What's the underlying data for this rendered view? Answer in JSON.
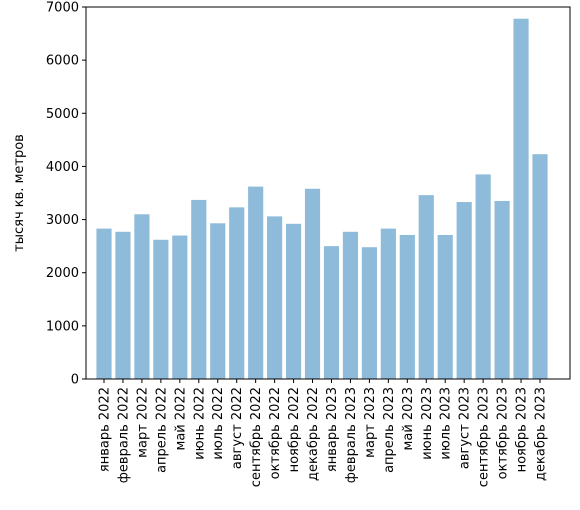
{
  "chart_data": {
    "type": "bar",
    "title": "",
    "xlabel": "",
    "ylabel": "тысяч кв. метров",
    "categories": [
      "январь 2022",
      "февраль 2022",
      "март 2022",
      "апрель 2022",
      "май 2022",
      "июнь 2022",
      "июль 2022",
      "август 2022",
      "сентябрь 2022",
      "октябрь 2022",
      "ноябрь 2022",
      "декабрь 2022",
      "январь 2023",
      "февраль 2023",
      "март 2023",
      "апрель 2023",
      "май 2023",
      "июнь 2023",
      "июль 2023",
      "август 2023",
      "сентябрь 2023",
      "октябрь 2023",
      "ноябрь 2023",
      "декабрь 2023"
    ],
    "values": [
      2830,
      2770,
      3100,
      2620,
      2700,
      3370,
      2930,
      3230,
      3620,
      3060,
      2920,
      3580,
      2500,
      2770,
      2480,
      2830,
      2710,
      3460,
      2710,
      3330,
      3850,
      3350,
      6780,
      4230
    ],
    "ylim": [
      0,
      7000
    ],
    "yticks": [
      0,
      1000,
      2000,
      3000,
      4000,
      5000,
      6000,
      7000
    ],
    "grid": false,
    "legend": "none",
    "bar_color": "#8fbbda"
  }
}
